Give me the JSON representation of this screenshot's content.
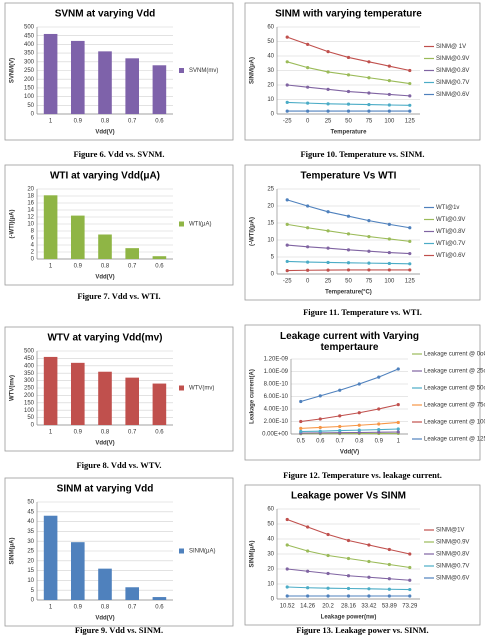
{
  "chart_data": [
    {
      "type": "bar",
      "title": "SVNM at varying Vdd",
      "caption": "Figure 6. Vdd vs. SVNM.",
      "xlabel": "Vdd(V)",
      "ylabel": "SVNM(V)",
      "categories": [
        "1",
        "0.9",
        "0.8",
        "0.7",
        "0.6"
      ],
      "series": [
        {
          "name": "SVNM(mv)",
          "color": "#7e62aa",
          "values": [
            460,
            420,
            360,
            320,
            280
          ]
        }
      ],
      "ylim": [
        0,
        500
      ],
      "yticks": [
        0,
        50,
        100,
        150,
        200,
        250,
        300,
        350,
        400,
        450,
        500
      ],
      "grid": true
    },
    {
      "type": "bar",
      "title": "WTI at varying Vdd(μA)",
      "caption": "Figure 7. Vdd vs. WTI.",
      "xlabel": "Vdd(V)",
      "ylabel": "(-WTI)(μA)",
      "categories": [
        "1",
        "0.9",
        "0.8",
        "0.7",
        "0.6"
      ],
      "series": [
        {
          "name": "WTI(μA)",
          "color": "#8fb545",
          "values": [
            18.2,
            12.4,
            7,
            3.1,
            0.8
          ]
        }
      ],
      "ylim": [
        0,
        20
      ],
      "yticks": [
        0,
        2,
        4,
        6,
        8,
        10,
        12,
        14,
        16,
        18,
        20
      ],
      "grid": true
    },
    {
      "type": "bar",
      "title": "WTV at varying Vdd(mv)",
      "caption": "Figure 8. Vdd vs. WTV.",
      "xlabel": "Vdd(V)",
      "ylabel": "WTV(mv)",
      "categories": [
        "1",
        "0.9",
        "0.8",
        "0.7",
        "0.6"
      ],
      "series": [
        {
          "name": "WTV(mv)",
          "color": "#c0504d",
          "values": [
            460,
            420,
            360,
            320,
            280
          ]
        }
      ],
      "ylim": [
        0,
        500
      ],
      "yticks": [
        0,
        50,
        100,
        150,
        200,
        250,
        300,
        350,
        400,
        450,
        500
      ],
      "grid": true
    },
    {
      "type": "bar",
      "title": "SINM at varying Vdd",
      "caption": "Figure 9. Vdd vs. SINM.",
      "xlabel": "Vdd(V)",
      "ylabel": "SINM(μA)",
      "categories": [
        "1",
        "0.9",
        "0.8",
        "0.7",
        "0.6"
      ],
      "series": [
        {
          "name": "SINM(μA)",
          "color": "#4f81bd",
          "values": [
            43,
            29.5,
            16,
            6.5,
            1.5
          ]
        }
      ],
      "ylim": [
        0,
        50
      ],
      "yticks": [
        0,
        5,
        10,
        15,
        20,
        25,
        30,
        35,
        40,
        45,
        50
      ],
      "grid": true
    },
    {
      "type": "line",
      "title": "SINM with varying temperature",
      "caption": "Figure 10. Temperature vs. SINM.",
      "xlabel": "Temperature",
      "ylabel": "SINM(μA)",
      "categories": [
        "-25",
        "0",
        "25",
        "50",
        "75",
        "100",
        "125"
      ],
      "series": [
        {
          "name": "SINM@ 1V",
          "color": "#c0504d",
          "values": [
            53,
            48,
            43,
            39,
            36,
            33,
            30
          ]
        },
        {
          "name": "SINM@0.9V",
          "color": "#9bbb59",
          "values": [
            36,
            32,
            29,
            27,
            25,
            23,
            21
          ]
        },
        {
          "name": "SINM@0.8V",
          "color": "#8064a2",
          "values": [
            20,
            18.5,
            17,
            15.5,
            14.5,
            13.5,
            12.5
          ]
        },
        {
          "name": "SINM@0.7V",
          "color": "#4bacc6",
          "values": [
            8,
            7.5,
            7,
            6.8,
            6.5,
            6.2,
            6
          ]
        },
        {
          "name": "SINM@0.6V",
          "color": "#4f81bd",
          "values": [
            2,
            2,
            2,
            2,
            2,
            2,
            2
          ]
        }
      ],
      "ylim": [
        0,
        60
      ],
      "yticks": [
        0,
        10,
        20,
        30,
        40,
        50,
        60
      ],
      "grid": true
    },
    {
      "type": "line",
      "title": "Temperature Vs WTI",
      "caption": "Figure 11. Temperature vs. WTI.",
      "xlabel": "Temperature(°C)",
      "ylabel": "(-WTI)(μA)",
      "categories": [
        "-25",
        "0",
        "25",
        "50",
        "75",
        "100",
        "125"
      ],
      "series": [
        {
          "name": "WTI@1v",
          "color": "#4f81bd",
          "values": [
            21.8,
            20,
            18.3,
            17,
            15.7,
            14.6,
            13.6
          ]
        },
        {
          "name": "WTI@0.9V",
          "color": "#9bbb59",
          "values": [
            14.6,
            13.6,
            12.7,
            11.8,
            11,
            10.3,
            9.6
          ]
        },
        {
          "name": "WTI@0.8V",
          "color": "#8064a2",
          "values": [
            8.5,
            8,
            7.6,
            7.1,
            6.7,
            6.3,
            6
          ]
        },
        {
          "name": "WTI@0.7V",
          "color": "#4bacc6",
          "values": [
            3.7,
            3.5,
            3.4,
            3.3,
            3.2,
            3.1,
            3
          ]
        },
        {
          "name": "WTI@0.6V",
          "color": "#c0504d",
          "values": [
            1,
            1.1,
            1.15,
            1.2,
            1.2,
            1.2,
            1.2
          ]
        }
      ],
      "ylim": [
        0,
        25
      ],
      "yticks": [
        0,
        5,
        10,
        15,
        20,
        25
      ],
      "grid": true
    },
    {
      "type": "line",
      "title": "Leakage current with Varying tempertaure",
      "caption": "Figure 12. Temperature vs. leakage current.",
      "xlabel": "Vdd(V)",
      "ylabel": "Leakage current(A)",
      "categories": [
        "0.5",
        "0.6",
        "0.7",
        "0.8",
        "0.9",
        "1"
      ],
      "series": [
        {
          "name": "Leakage current @ 0oC",
          "color": "#9bbb59",
          "values": [
            5e-12,
            6e-12,
            7e-12,
            8e-12,
            9e-12,
            1e-11
          ]
        },
        {
          "name": "Leakage current @ 25oC",
          "color": "#8064a2",
          "values": [
            1.5e-11,
            1.8e-11,
            2.1e-11,
            2.4e-11,
            2.8e-11,
            3.2e-11
          ]
        },
        {
          "name": "Leakage current @ 50oC",
          "color": "#4bacc6",
          "values": [
            4e-11,
            4.5e-11,
            5.5e-11,
            6.2e-11,
            7e-11,
            8e-11
          ]
        },
        {
          "name": "Leakage current @ 75oC",
          "color": "#f79646",
          "values": [
            9e-11,
            1.05e-10,
            1.2e-10,
            1.4e-10,
            1.6e-10,
            1.85e-10
          ]
        },
        {
          "name": "Leakage current @ 100oC",
          "color": "#c0504d",
          "values": [
            2e-10,
            2.4e-10,
            2.9e-10,
            3.4e-10,
            4e-10,
            4.7e-10
          ]
        },
        {
          "name": "Leakage current @ 125oC",
          "color": "#4f81bd",
          "values": [
            5.2e-10,
            6.1e-10,
            7e-10,
            8e-10,
            9.1e-10,
            1.04e-09
          ]
        }
      ],
      "ylim": [
        0,
        1.2e-09
      ],
      "yticks": [
        {
          "value": 0,
          "label": "0.00E+00"
        },
        {
          "value": 2e-10,
          "label": "2.00E-10"
        },
        {
          "value": 4e-10,
          "label": "4.00E-10"
        },
        {
          "value": 6e-10,
          "label": "6.00E-10"
        },
        {
          "value": 8e-10,
          "label": "8.00E-10"
        },
        {
          "value": 1e-09,
          "label": "1.00E-09"
        },
        {
          "value": 1.2e-09,
          "label": "1.20E-09"
        }
      ],
      "grid": true
    },
    {
      "type": "line",
      "title": "Leakage power Vs SINM",
      "caption": "Figure 13. Leakage power vs. SINM.",
      "xlabel": "Leakage power(nw)",
      "ylabel": "SINM(μA)",
      "categories": [
        "10.52",
        "14.26",
        "20.2",
        "28.16",
        "33.42",
        "53.89",
        "73.29"
      ],
      "series": [
        {
          "name": "SINM@1V",
          "color": "#c0504d",
          "values": [
            53,
            48,
            43,
            39,
            36,
            33,
            30
          ]
        },
        {
          "name": "SINM@0.9V",
          "color": "#9bbb59",
          "values": [
            36,
            32,
            29,
            27,
            25,
            23,
            21
          ]
        },
        {
          "name": "SINM@0.8V",
          "color": "#8064a2",
          "values": [
            20,
            18.5,
            17,
            15.5,
            14.5,
            13.5,
            12.5
          ]
        },
        {
          "name": "SINM@0.7V",
          "color": "#4bacc6",
          "values": [
            8,
            7.5,
            7.2,
            7,
            6.8,
            6.5,
            6.3
          ]
        },
        {
          "name": "SINM@0.6V",
          "color": "#4f81bd",
          "values": [
            2,
            2,
            2,
            2,
            2,
            2,
            2
          ]
        }
      ],
      "ylim": [
        0,
        60
      ],
      "yticks": [
        0,
        10,
        20,
        30,
        40,
        50,
        60
      ],
      "grid": true
    }
  ]
}
